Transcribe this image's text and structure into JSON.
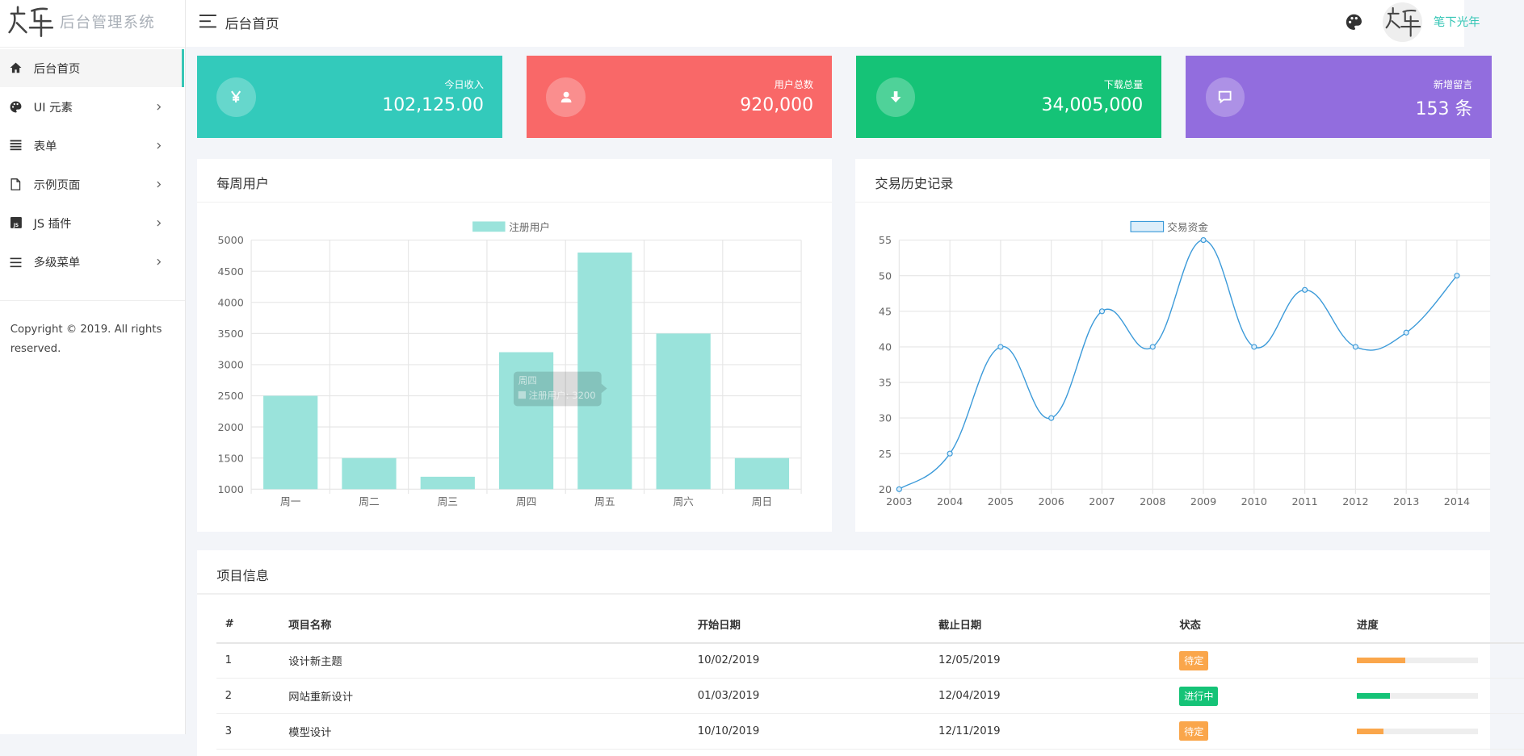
{
  "brand": {
    "title": "后台管理系统"
  },
  "sidebar": {
    "items": [
      {
        "label": "后台首页",
        "icon": "home-icon",
        "active": true
      },
      {
        "label": "UI 元素",
        "icon": "palette-icon"
      },
      {
        "label": "表单",
        "icon": "list-icon"
      },
      {
        "label": "示例页面",
        "icon": "file-icon"
      },
      {
        "label": "JS 插件",
        "icon": "js-icon"
      },
      {
        "label": "多级菜单",
        "icon": "bars-icon"
      }
    ],
    "copyright": "Copyright © 2019. All rights reserved."
  },
  "header": {
    "title": "后台首页",
    "username": "笔下光年"
  },
  "stats": [
    {
      "label": "今日收入",
      "value": "102,125.00",
      "icon": "yen-icon",
      "color": "#33cabb"
    },
    {
      "label": "用户总数",
      "value": "920,000",
      "icon": "user-icon",
      "color": "#f96868"
    },
    {
      "label": "下载总量",
      "value": "34,005,000",
      "icon": "download-icon",
      "color": "#15c377"
    },
    {
      "label": "新增留言",
      "value": "153 条",
      "icon": "message-icon",
      "color": "#926dde"
    }
  ],
  "panels": {
    "weekly": "每周用户",
    "history": "交易历史记录",
    "projects": "项目信息"
  },
  "chart_data": [
    {
      "type": "bar",
      "categories": [
        "周一",
        "周二",
        "周三",
        "周四",
        "周五",
        "周六",
        "周日"
      ],
      "series": [
        {
          "name": "注册用户",
          "values": [
            2500,
            1500,
            1200,
            3200,
            4800,
            3500,
            1500
          ],
          "color": "#9ae3db"
        }
      ],
      "ylim": [
        1000,
        5000
      ],
      "yticks": [
        1000,
        1500,
        2000,
        2500,
        3000,
        3500,
        4000,
        4500,
        5000
      ],
      "grid": true,
      "legend": "top-center",
      "tooltip": {
        "title": "周四",
        "text": "注册用户: 3200"
      }
    },
    {
      "type": "line",
      "x": [
        "2003",
        "2004",
        "2005",
        "2006",
        "2007",
        "2008",
        "2009",
        "2010",
        "2011",
        "2012",
        "2013",
        "2014"
      ],
      "series": [
        {
          "name": "交易资金",
          "values": [
            20,
            25,
            40,
            30,
            45,
            40,
            55,
            40,
            48,
            40,
            42,
            50
          ],
          "color": "#3b9ad9"
        }
      ],
      "ylim": [
        20,
        55
      ],
      "yticks": [
        20,
        25,
        30,
        35,
        40,
        45,
        50,
        55
      ],
      "grid": true,
      "legend": "top-center"
    }
  ],
  "table": {
    "headers": [
      "#",
      "项目名称",
      "开始日期",
      "截止日期",
      "状态",
      "进度"
    ],
    "rows": [
      {
        "id": "1",
        "name": "设计新主题",
        "start": "10/02/2019",
        "end": "12/05/2019",
        "status": "待定",
        "status_color": "#faa64b",
        "progress": 0.4
      },
      {
        "id": "2",
        "name": "网站重新设计",
        "start": "01/03/2019",
        "end": "12/04/2019",
        "status": "进行中",
        "status_color": "#15c377",
        "progress": 0.27
      },
      {
        "id": "3",
        "name": "模型设计",
        "start": "10/10/2019",
        "end": "12/11/2019",
        "status": "待定",
        "status_color": "#faa64b",
        "progress": 0.22
      }
    ]
  }
}
